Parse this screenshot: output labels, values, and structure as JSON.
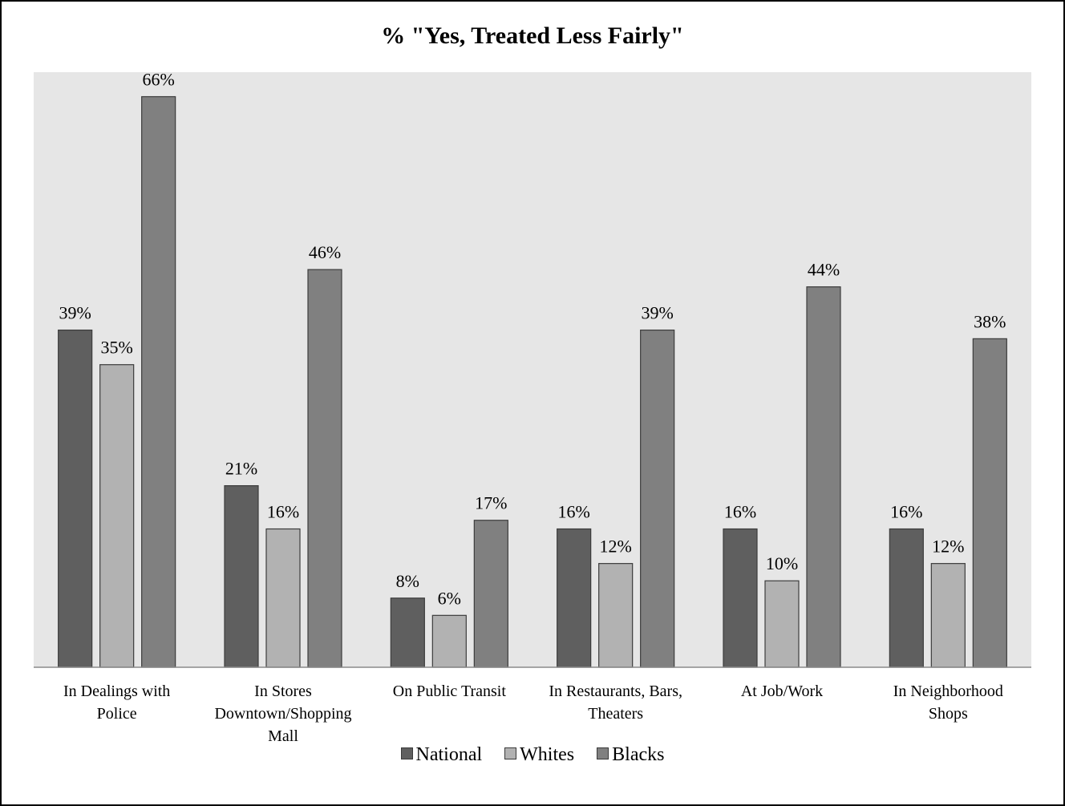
{
  "chart_data": {
    "type": "bar",
    "title": "% \"Yes, Treated Less Fairly\"",
    "categories": [
      [
        "In Dealings with",
        "Police"
      ],
      [
        "In Stores",
        "Downtown/Shopping",
        "Mall"
      ],
      [
        "On Public Transit"
      ],
      [
        "In Restaurants, Bars,",
        "Theaters"
      ],
      [
        "At Job/Work"
      ],
      [
        "In Neighborhood",
        "Shops"
      ]
    ],
    "series": [
      {
        "name": "National",
        "color": "#5f5f5f",
        "values": [
          39,
          21,
          8,
          16,
          16,
          16
        ]
      },
      {
        "name": "Whites",
        "color": "#b2b2b2",
        "values": [
          35,
          16,
          6,
          12,
          10,
          12
        ]
      },
      {
        "name": "Blacks",
        "color": "#808080",
        "values": [
          66,
          46,
          17,
          39,
          44,
          38
        ]
      }
    ],
    "value_suffix": "%",
    "ylim": [
      0,
      70
    ],
    "grid": false,
    "legend_position": "bottom",
    "plot_background": "#e6e6e6"
  }
}
